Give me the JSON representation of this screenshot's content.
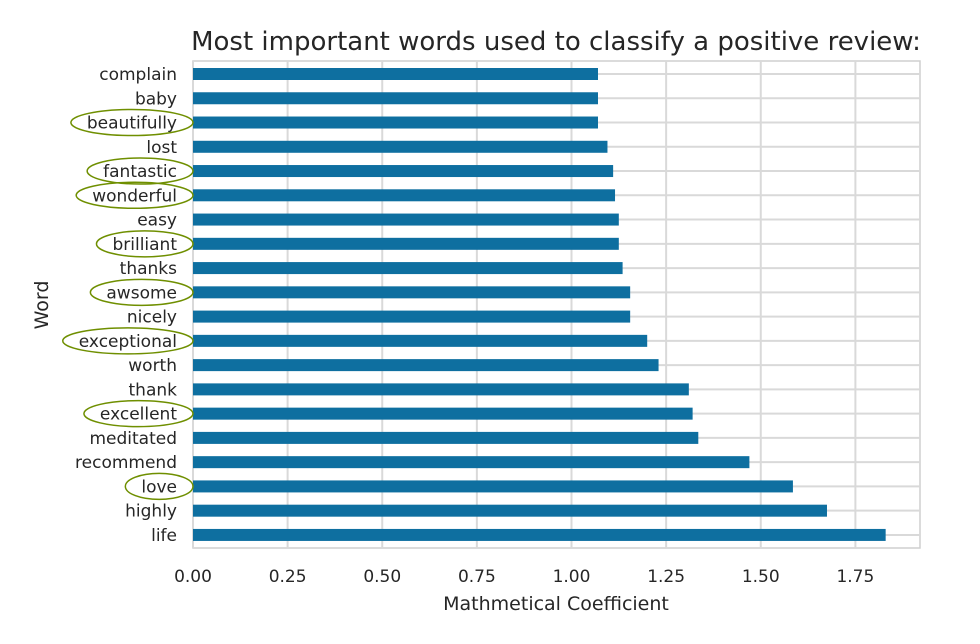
{
  "chart_data": {
    "type": "bar",
    "orientation": "horizontal",
    "title": "Most important words used to classify a positive review:",
    "xlabel": "Mathmetical Coefficient",
    "ylabel": "Word",
    "xlim": [
      0,
      1.93
    ],
    "xticks": [
      "0.00",
      "0.25",
      "0.50",
      "0.75",
      "1.00",
      "1.25",
      "1.50",
      "1.75"
    ],
    "grid": true,
    "bar_color": "#0e6fa0",
    "highlight_color": "#6f8f00",
    "categories": [
      "complain",
      "baby",
      "beautifully",
      "lost",
      "fantastic",
      "wonderful",
      "easy",
      "brilliant",
      "thanks",
      "awsome",
      "nicely",
      "exceptional",
      "worth",
      "thank",
      "excellent",
      "meditated",
      "recommend",
      "love",
      "highly",
      "life"
    ],
    "values": [
      1.07,
      1.07,
      1.07,
      1.095,
      1.11,
      1.115,
      1.125,
      1.125,
      1.135,
      1.155,
      1.155,
      1.2,
      1.23,
      1.31,
      1.32,
      1.335,
      1.47,
      1.585,
      1.675,
      1.83
    ],
    "highlighted": [
      "beautifully",
      "fantastic",
      "wonderful",
      "brilliant",
      "awsome",
      "exceptional",
      "excellent",
      "love"
    ]
  }
}
